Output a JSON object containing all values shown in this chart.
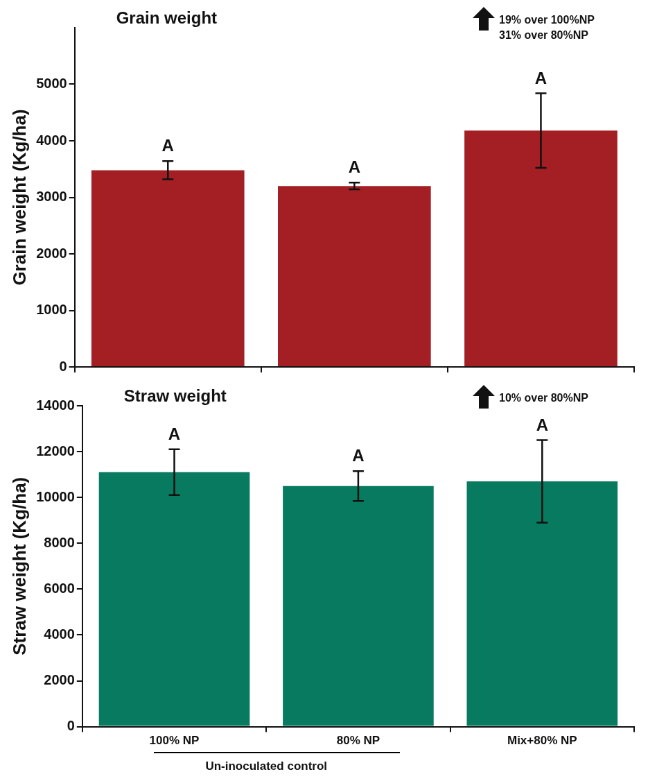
{
  "chart_data": [
    {
      "type": "bar",
      "title": "Grain weight",
      "ylabel": "Grain weight (Kg/ha)",
      "categories": [
        null,
        null,
        null
      ],
      "values": [
        3480,
        3200,
        4180
      ],
      "errors": [
        160,
        60,
        660
      ],
      "color": "#a31f24",
      "ylim": [
        0,
        6000
      ],
      "yticks": [
        0,
        1000,
        2000,
        3000,
        4000,
        5000
      ],
      "tick_labels": "y",
      "annotations": [
        "A",
        "A",
        "A",
        "19% over 100%NP",
        "31% over 80%NP"
      ]
    },
    {
      "type": "bar",
      "title": "Straw weight",
      "ylabel": "Straw weight (Kg/ha)",
      "xlabel": "Un-inoculated control",
      "categories": [
        "100% NP",
        "80% NP",
        "Mix+80% NP"
      ],
      "values": [
        11100,
        10500,
        10700
      ],
      "errors": [
        1000,
        650,
        1800
      ],
      "color": "#087a5f",
      "ylim": [
        0,
        14000
      ],
      "yticks": [
        0,
        2000,
        4000,
        6000,
        8000,
        10000,
        12000,
        14000
      ],
      "annotations": [
        "A",
        "A",
        "A",
        "10% over 80%NP"
      ]
    }
  ]
}
